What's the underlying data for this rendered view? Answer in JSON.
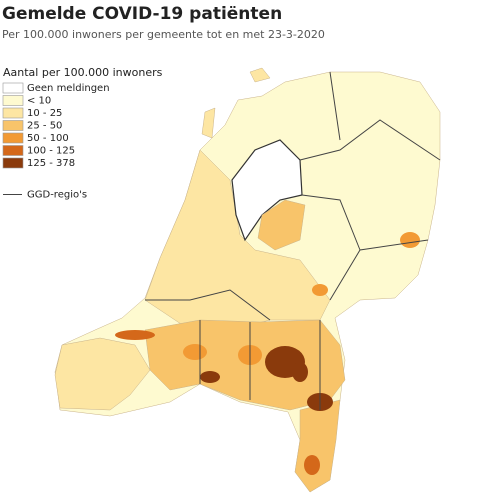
{
  "header": {
    "title": "Gemelde COVID-19 patiënten",
    "subtitle": "Per 100.000 inwoners per gemeente tot en met 23-3-2020"
  },
  "legend": {
    "title": "Aantal per 100.000 inwoners",
    "items": [
      {
        "label": "Geen meldingen",
        "color": "#ffffff"
      },
      {
        "label": "< 10",
        "color": "#fefad0"
      },
      {
        "label": "10 - 25",
        "color": "#fde6a3"
      },
      {
        "label": "25 - 50",
        "color": "#f8c46a"
      },
      {
        "label": "50 - 100",
        "color": "#f29a34"
      },
      {
        "label": "100 - 125",
        "color": "#d4681a"
      },
      {
        "label": "125 - 378",
        "color": "#8a3a0c"
      }
    ],
    "region_line": "GGD-regio's"
  }
}
